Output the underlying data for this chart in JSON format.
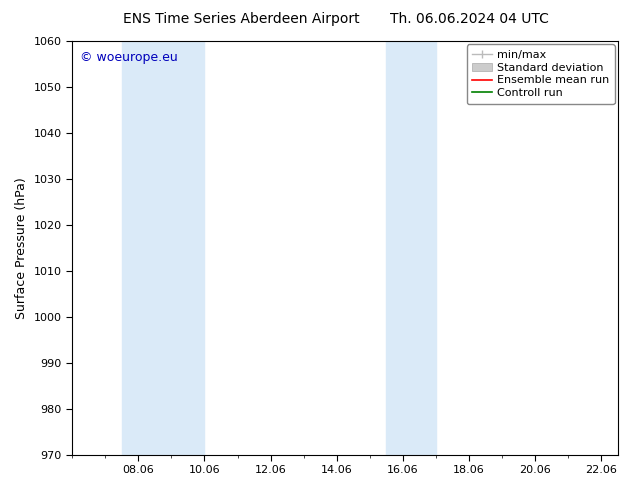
{
  "title_left": "ENS Time Series Aberdeen Airport",
  "title_right": "Th. 06.06.2024 04 UTC",
  "ylabel": "Surface Pressure (hPa)",
  "ylim": [
    970,
    1060
  ],
  "yticks": [
    970,
    980,
    990,
    1000,
    1010,
    1020,
    1030,
    1040,
    1050,
    1060
  ],
  "xlim_start": 6.0,
  "xlim_end": 22.5,
  "xtick_labels": [
    "08.06",
    "10.06",
    "12.06",
    "14.06",
    "16.06",
    "18.06",
    "20.06",
    "22.06"
  ],
  "xtick_positions": [
    8.0,
    10.0,
    12.0,
    14.0,
    16.0,
    18.0,
    20.0,
    22.0
  ],
  "shaded_bands": [
    {
      "x_start": 7.5,
      "x_end": 10.0,
      "color": "#daeaf8"
    },
    {
      "x_start": 15.5,
      "x_end": 17.0,
      "color": "#daeaf8"
    }
  ],
  "watermark_text": "© woeurope.eu",
  "watermark_color": "#0000bb",
  "background_color": "#ffffff",
  "plot_bg_color": "#ffffff",
  "legend_items": [
    {
      "label": "min/max",
      "color": "#bbbbbb"
    },
    {
      "label": "Standard deviation",
      "color": "#cccccc"
    },
    {
      "label": "Ensemble mean run",
      "color": "#ff0000"
    },
    {
      "label": "Controll run",
      "color": "#008000"
    }
  ],
  "title_fontsize": 10,
  "axis_label_fontsize": 9,
  "tick_fontsize": 8,
  "watermark_fontsize": 9,
  "legend_fontsize": 8
}
